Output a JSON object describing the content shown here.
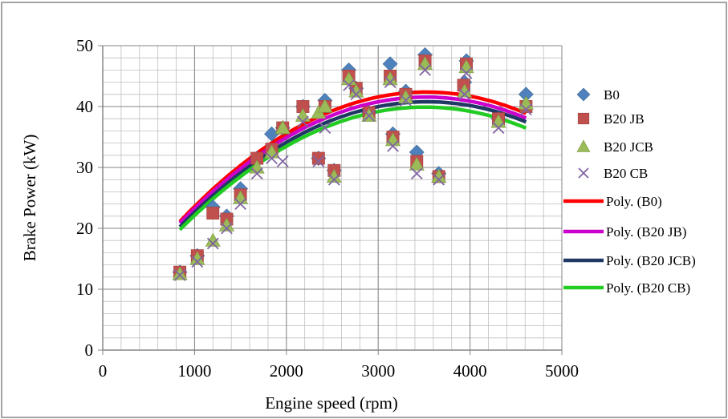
{
  "chart_data": {
    "type": "scatter",
    "title": "",
    "xlabel": "Engine speed (rpm)",
    "ylabel": "Brake Power (kW)",
    "xlim": [
      0,
      5000
    ],
    "ylim": [
      0,
      50
    ],
    "x_ticks": [
      0,
      1000,
      2000,
      3000,
      4000,
      5000
    ],
    "y_ticks": [
      0,
      10,
      20,
      30,
      40,
      50
    ],
    "grid": true,
    "legend_position": "right",
    "series": [
      {
        "name": "B0",
        "marker": "diamond",
        "color": "#4F81BD",
        "x": [
          840,
          1030,
          1200,
          1350,
          1500,
          1680,
          1840,
          1960,
          2180,
          2350,
          2420,
          2520,
          2680,
          2760,
          2900,
          3130,
          3160,
          3300,
          3420,
          3510,
          3660,
          3940,
          3960,
          4310,
          4610
        ],
        "y": [
          12.8,
          15.5,
          23.5,
          22.0,
          26.5,
          31.5,
          35.5,
          36.5,
          40.0,
          31.5,
          41.0,
          29.5,
          46.0,
          43.0,
          39.0,
          47.0,
          35.5,
          42.5,
          32.5,
          48.5,
          29.0,
          44.0,
          47.5,
          38.0,
          42.0
        ]
      },
      {
        "name": "B20 JB",
        "marker": "square",
        "color": "#C0504D",
        "x": [
          840,
          1030,
          1200,
          1350,
          1500,
          1680,
          1840,
          1960,
          2180,
          2350,
          2420,
          2520,
          2680,
          2760,
          2900,
          3130,
          3160,
          3300,
          3420,
          3510,
          3660,
          3930,
          3960,
          4310,
          4610
        ],
        "y": [
          12.8,
          15.5,
          22.5,
          21.5,
          25.5,
          31.5,
          33.0,
          36.5,
          40.0,
          31.5,
          40.0,
          29.5,
          45.0,
          43.0,
          39.0,
          45.0,
          35.0,
          42.0,
          31.0,
          47.5,
          28.5,
          43.5,
          47.0,
          38.0,
          40.0
        ]
      },
      {
        "name": "B20 JCB",
        "marker": "triangle",
        "color": "#9BBB59",
        "x": [
          840,
          1030,
          1200,
          1350,
          1500,
          1680,
          1840,
          1960,
          2180,
          2350,
          2420,
          2520,
          2680,
          2760,
          2900,
          3130,
          3160,
          3300,
          3420,
          3510,
          3660,
          3940,
          3960,
          4310,
          4610
        ],
        "y": [
          12.5,
          15.0,
          18.0,
          20.5,
          25.0,
          30.0,
          32.5,
          36.5,
          38.5,
          39.0,
          40.0,
          28.5,
          44.5,
          42.5,
          38.5,
          44.5,
          34.5,
          41.5,
          30.5,
          47.0,
          28.5,
          42.5,
          46.5,
          37.5,
          40.5
        ]
      },
      {
        "name": "B20 CB",
        "marker": "x",
        "color": "#8064A2",
        "x": [
          840,
          1030,
          1200,
          1350,
          1500,
          1680,
          1840,
          1960,
          2180,
          2350,
          2420,
          2520,
          2680,
          2760,
          2900,
          3130,
          3160,
          3300,
          3420,
          3510,
          3660,
          3940,
          3960,
          4310,
          4610
        ],
        "y": [
          12.3,
          14.5,
          17.5,
          20.0,
          24.0,
          29.0,
          31.5,
          31.0,
          37.5,
          31.0,
          36.5,
          28.0,
          43.5,
          42.0,
          38.5,
          44.0,
          33.5,
          41.0,
          29.0,
          46.0,
          28.0,
          42.0,
          45.5,
          36.5,
          39.5
        ]
      }
    ],
    "trendlines": [
      {
        "name": "Poly. (B0)",
        "color": "#FF0000",
        "x_range": [
          840,
          4610
        ],
        "coeffs": [
          -2.96e-06,
          0.02084,
          5.7
        ]
      },
      {
        "name": "Poly. (B20 JB)",
        "color": "#CC00CC",
        "x_range": [
          840,
          4610
        ],
        "coeffs": [
          -2.89e-06,
          0.02033,
          5.8
        ]
      },
      {
        "name": "Poly. (B20 JCB)",
        "color": "#1F3864",
        "x_range": [
          840,
          4610
        ],
        "coeffs": [
          -2.84e-06,
          0.02005,
          5.4
        ]
      },
      {
        "name": "Poly. (B20 CB)",
        "color": "#22CC22",
        "x_range": [
          840,
          4610
        ],
        "coeffs": [
          -2.83e-06,
          0.01985,
          5.1
        ]
      }
    ]
  }
}
